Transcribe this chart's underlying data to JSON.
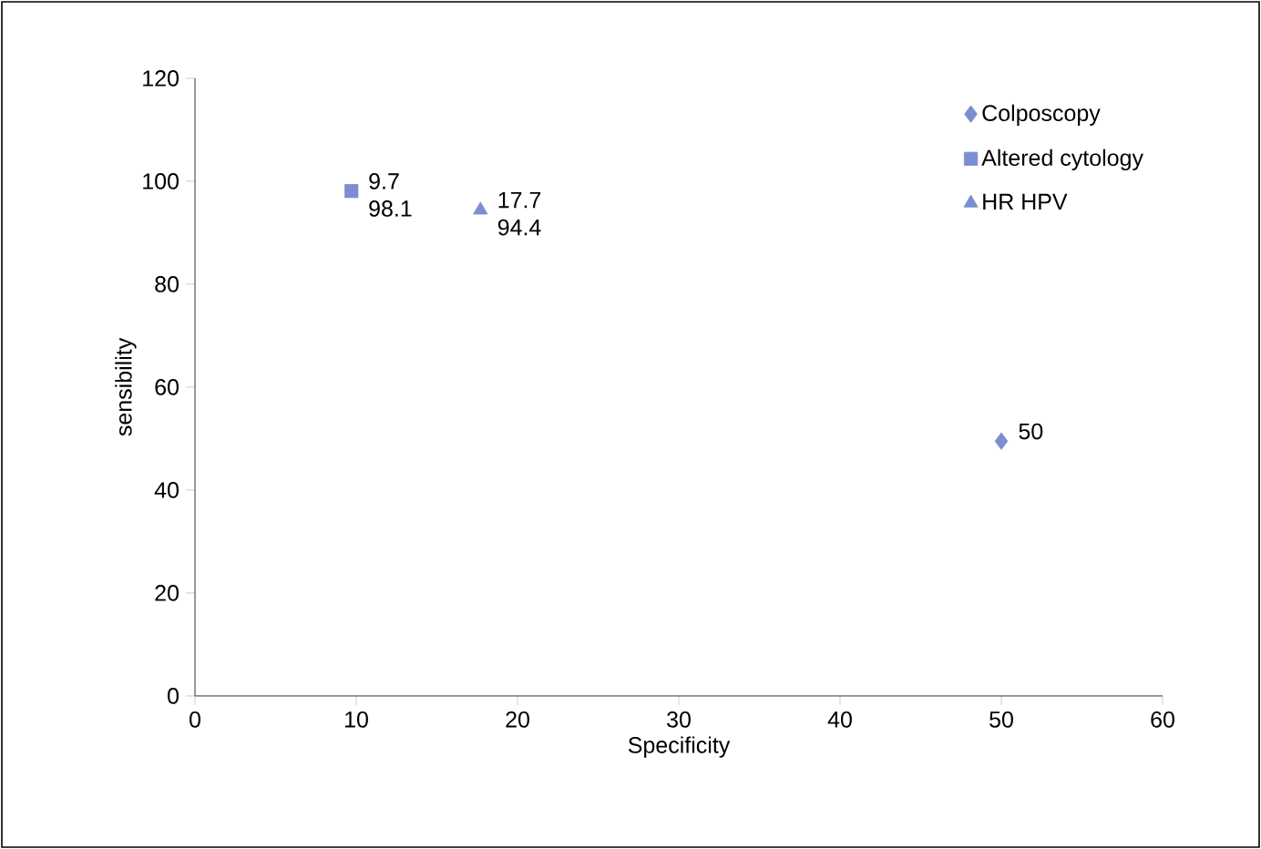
{
  "chart_data": {
    "type": "scatter",
    "xlabel": "Specificity",
    "ylabel": "sensibility",
    "xlim": [
      0,
      60
    ],
    "xticks": [
      0,
      10,
      20,
      30,
      40,
      50,
      60
    ],
    "ylim": [
      0,
      120
    ],
    "yticks": [
      0,
      20,
      40,
      60,
      80,
      100,
      120
    ],
    "legend": "top right",
    "series": [
      {
        "name": "Colposcopy",
        "color": "#7b8ed0",
        "marker": "diamond",
        "x": [
          50
        ],
        "values": [
          49.5
        ],
        "value_labels": [
          "50"
        ]
      },
      {
        "name": "Altered cytology",
        "color": "#7b8ed0",
        "marker": "square",
        "x": [
          9.7
        ],
        "values": [
          98.1
        ],
        "value_labels": [
          "9.7 98.1"
        ]
      },
      {
        "name": "HR HPV",
        "color": "#7b8ed0",
        "marker": "triangle",
        "x": [
          17.7
        ],
        "values": [
          94.4
        ],
        "value_labels": [
          "17.7 94.4"
        ]
      }
    ]
  }
}
